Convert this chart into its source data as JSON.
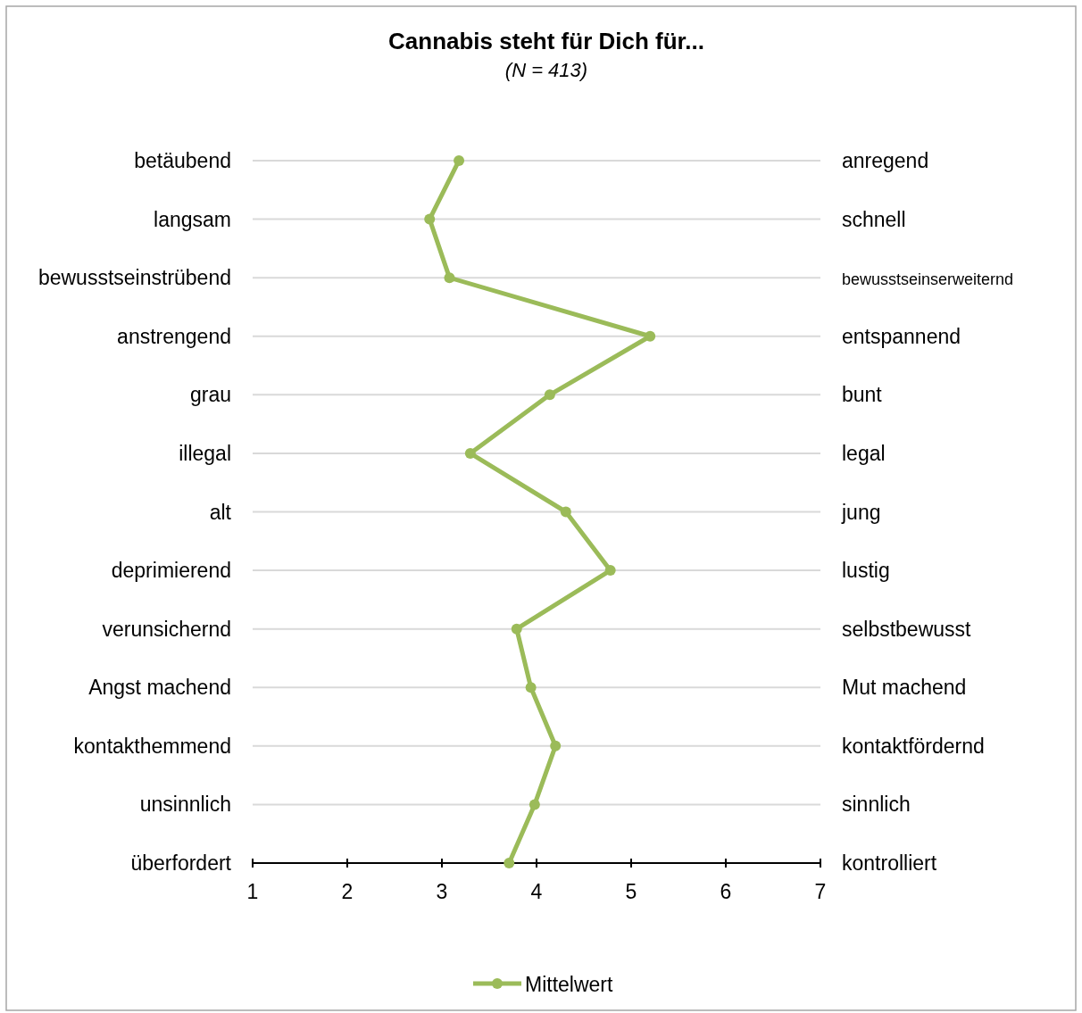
{
  "chart_data": {
    "type": "line",
    "orientation": "horizontal",
    "title": "Cannabis steht für Dich für...",
    "subtitle": "(N = 413)",
    "categories": [
      "betäubend",
      "langsam",
      "bewusstseinstrübend",
      "anstrengend",
      "grau",
      "illegal",
      "alt",
      "deprimierend",
      "verunsichernd",
      "Angst machend",
      "kontakthemmend",
      "unsinnlich",
      "überfordert"
    ],
    "y2_categories": [
      "anregend",
      "schnell",
      "bewusstseinserweiternd",
      "entspannend",
      "bunt",
      "legal",
      "jung",
      "lustig",
      "selbstbewusst",
      "Mut machend",
      "kontaktfördernd",
      "sinnlich",
      "kontrolliert"
    ],
    "series": [
      {
        "name": "Mittelwert",
        "color": "#9bbb59",
        "values": [
          3.18,
          2.87,
          3.08,
          5.2,
          4.14,
          3.3,
          4.31,
          4.78,
          3.79,
          3.94,
          4.2,
          3.98,
          3.71
        ]
      }
    ],
    "xlim": [
      1,
      7
    ],
    "xticks": [
      1,
      2,
      3,
      4,
      5,
      6,
      7
    ],
    "grid": "y",
    "legend": "bottom",
    "marker": "circle",
    "line_style": "solid"
  }
}
